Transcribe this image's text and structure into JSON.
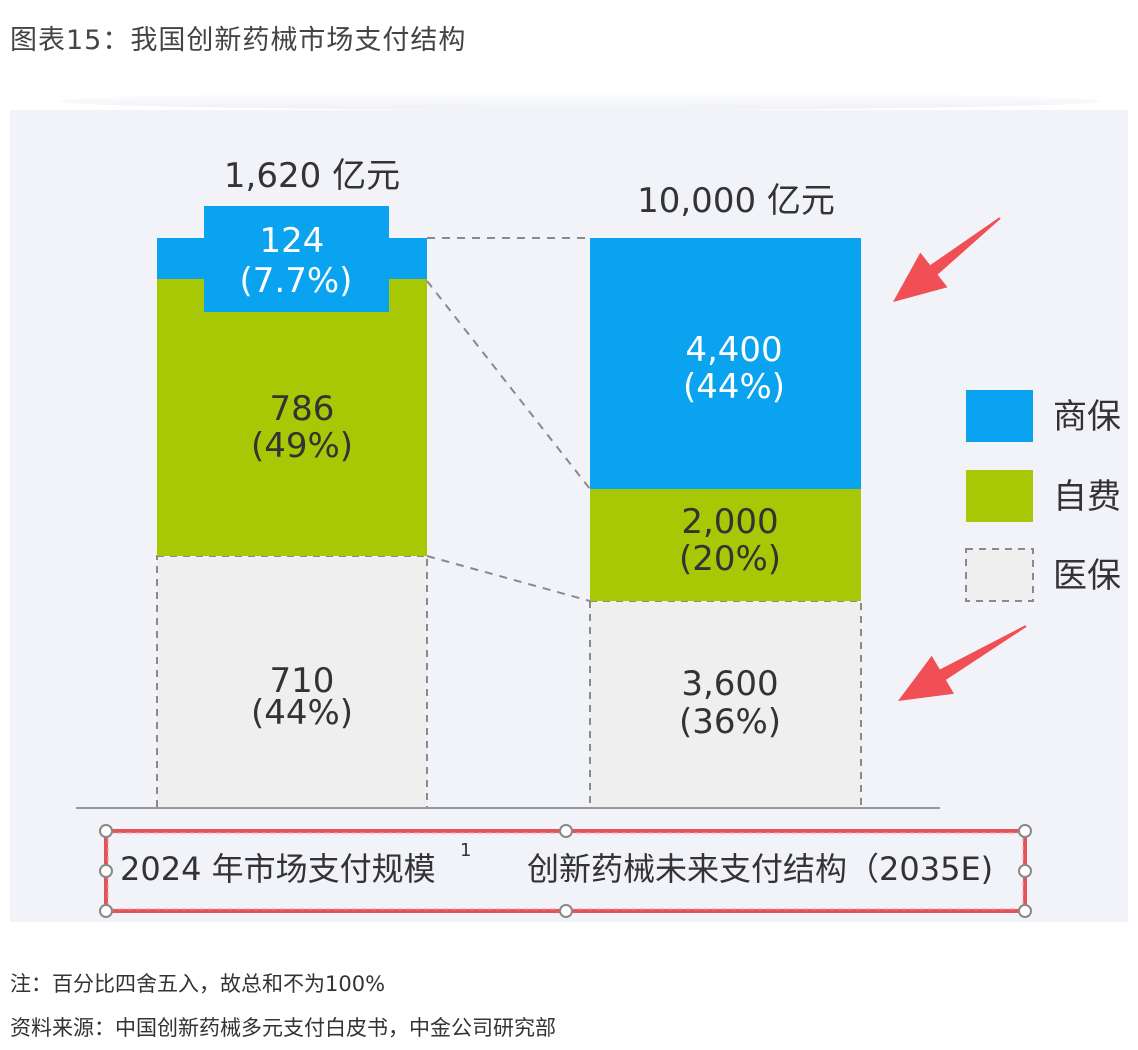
{
  "figure_title": "图表15：我国创新药械市场支付结构",
  "chart_data": {
    "type": "bar",
    "stacked": true,
    "categories": [
      "2024 年市场支付规模",
      "创新药械未来支付结构（2035E)"
    ],
    "category_superscripts": [
      "1",
      ""
    ],
    "totals": [
      "1,620 亿元",
      "10,000 亿元"
    ],
    "series": [
      {
        "name": "医保",
        "values": [
          710,
          3600
        ],
        "labels": [
          "710",
          "3,600"
        ],
        "pct_labels": [
          "(44%)",
          "(36%)"
        ],
        "color": "#efefef",
        "style": "dashed"
      },
      {
        "name": "自费",
        "values": [
          786,
          2000
        ],
        "labels": [
          "786",
          "2,000"
        ],
        "pct_labels": [
          "(49%)",
          "(20%)"
        ],
        "color": "#a8c806",
        "style": "solid"
      },
      {
        "name": "商保",
        "values": [
          124,
          4400
        ],
        "labels": [
          "124",
          "4,400"
        ],
        "pct_labels": [
          "(7.7%)",
          "(44%)"
        ],
        "color": "#0aa3ef",
        "style": "solid"
      }
    ],
    "legend": [
      "商保",
      "自费",
      "医保"
    ],
    "legend_position": "right",
    "grid": false
  },
  "notes": [
    "注：百分比四舍五入，故总和不为100%",
    "资料来源：中国创新药械多元支付白皮书，中金公司研究部"
  ],
  "colors": {
    "annotation_arrow": "#f04f55",
    "selection_box": "#e5535a",
    "axis": "#999999",
    "dash": "#8a8a8a"
  }
}
